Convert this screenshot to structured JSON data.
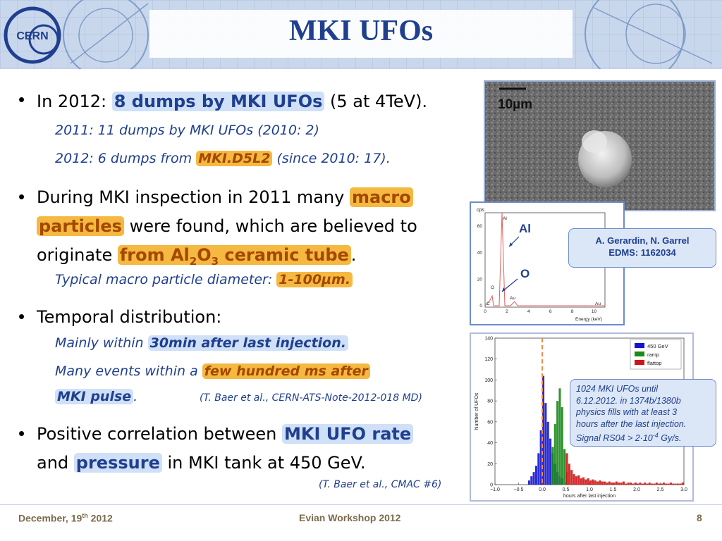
{
  "header": {
    "title": "MKI UFOs",
    "logo_text": "CERN"
  },
  "bullets": [
    {
      "line1_pre": "In 2012: ",
      "line1_hl": "8 dumps by MKI UFOs",
      "line1_post": " (5 at 4TeV).",
      "sub1": "2011: 11 dumps by MKI UFOs (2010: 2)",
      "sub2_pre": "2012: 6 dumps from ",
      "sub2_hl": "MKI.D5L2",
      "sub2_post": " (since 2010: 17)."
    },
    {
      "p1": "During MKI inspection in 2011 many ",
      "hl1": "macro",
      "hl2": "particles",
      "p2": " were found, which are believed to",
      "p3": "originate ",
      "hl3_a": "from Al",
      "hl3_sub1": "2",
      "hl3_b": "O",
      "hl3_sub2": "3",
      "hl3_c": " ceramic tube",
      "p4": ".",
      "sub_pre": "Typical macro particle diameter: ",
      "sub_hl": "1-100µm."
    },
    {
      "text": "Temporal distribution:",
      "sub1_pre": "Mainly within ",
      "sub1_hl": "30min after last injection.",
      "sub2_pre": "Many events within a ",
      "sub2_hl_a": "few hundred ms after",
      "sub2_hl_b": "MKI pulse",
      "sub2_post": ".",
      "ref": "(T. Baer et al., CERN-ATS-Note-2012-018 MD)"
    },
    {
      "pre": "Positive correlation between ",
      "hl1": "MKI UFO rate",
      "mid": "and ",
      "hl2": "pressure",
      "post": " in MKI tank at 450 GeV.",
      "ref": "(T. Baer et al., CMAC #6)"
    }
  ],
  "micrograph": {
    "scale_label": "10µm"
  },
  "callout": {
    "line1": "A. Gerardin, N. Garrel",
    "line2": "EDMS: 1162034"
  },
  "eds": {
    "y_unit": "cps",
    "y_ticks": [
      "0",
      "20",
      "40",
      "60"
    ],
    "x_ticks": [
      "0",
      "2",
      "4",
      "6",
      "8",
      "10"
    ],
    "x_label": "Energy (keV)",
    "peak_labels": [
      "Al",
      "O",
      "Au",
      "C",
      "Au"
    ],
    "label_al": "Al",
    "label_o": "O"
  },
  "chart_data": {
    "type": "bar",
    "ylabel": "Number of UFOs",
    "xlabel": "hours after last injection",
    "xlim": [
      -1.0,
      3.0
    ],
    "ylim": [
      0,
      140
    ],
    "x_ticks": [
      "−1.0",
      "−0.5",
      "0.0",
      "0.5",
      "1.0",
      "1.5",
      "2.0",
      "2.5",
      "3.0"
    ],
    "y_ticks": [
      "0",
      "20",
      "40",
      "60",
      "80",
      "100",
      "120",
      "140"
    ],
    "bin_width": 0.05,
    "series": [
      {
        "name": "450 GeV",
        "color": "#1515d0",
        "bins": [
          [
            -0.3,
            4
          ],
          [
            -0.25,
            8
          ],
          [
            -0.2,
            12
          ],
          [
            -0.15,
            18
          ],
          [
            -0.1,
            30
          ],
          [
            -0.05,
            52
          ],
          [
            0.0,
            104
          ],
          [
            0.05,
            78
          ],
          [
            0.1,
            60
          ],
          [
            0.15,
            44
          ],
          [
            0.2,
            30
          ],
          [
            0.25,
            20
          ],
          [
            0.3,
            12
          ],
          [
            0.35,
            8
          ],
          [
            0.4,
            6
          ]
        ]
      },
      {
        "name": "ramp",
        "color": "#1a8a1a",
        "bins": [
          [
            0.2,
            36
          ],
          [
            0.25,
            58
          ],
          [
            0.3,
            80
          ],
          [
            0.35,
            92
          ],
          [
            0.4,
            74
          ],
          [
            0.45,
            34
          ],
          [
            0.5,
            12
          ]
        ]
      },
      {
        "name": "flattop",
        "color": "#d01515",
        "bins": [
          [
            0.5,
            30
          ],
          [
            0.55,
            20
          ],
          [
            0.6,
            14
          ],
          [
            0.65,
            10
          ],
          [
            0.7,
            8
          ],
          [
            0.75,
            9
          ],
          [
            0.8,
            6
          ],
          [
            0.85,
            7
          ],
          [
            0.9,
            5
          ],
          [
            0.95,
            6
          ],
          [
            1.0,
            4
          ],
          [
            1.05,
            5
          ],
          [
            1.1,
            4
          ],
          [
            1.15,
            3
          ],
          [
            1.2,
            4
          ],
          [
            1.25,
            3
          ],
          [
            1.3,
            3
          ],
          [
            1.35,
            2
          ],
          [
            1.4,
            3
          ],
          [
            1.45,
            2
          ],
          [
            1.5,
            2
          ],
          [
            1.55,
            3
          ],
          [
            1.6,
            2
          ],
          [
            1.65,
            2
          ],
          [
            1.7,
            3
          ],
          [
            1.75,
            1
          ],
          [
            1.8,
            2
          ],
          [
            1.85,
            2
          ],
          [
            1.9,
            1
          ],
          [
            1.95,
            2
          ],
          [
            2.0,
            1
          ],
          [
            2.05,
            2
          ],
          [
            2.1,
            1
          ],
          [
            2.15,
            2
          ],
          [
            2.2,
            1
          ],
          [
            2.25,
            2
          ],
          [
            2.3,
            1
          ],
          [
            2.35,
            1
          ],
          [
            2.4,
            2
          ],
          [
            2.45,
            1
          ],
          [
            2.5,
            1
          ],
          [
            2.55,
            2
          ],
          [
            2.6,
            1
          ],
          [
            2.65,
            1
          ],
          [
            2.7,
            2
          ],
          [
            2.75,
            1
          ],
          [
            2.8,
            1
          ],
          [
            2.85,
            1
          ],
          [
            2.9,
            1
          ],
          [
            2.95,
            2
          ]
        ]
      }
    ],
    "marker_x": 0.0,
    "legend_placement": "top-right"
  },
  "note": {
    "l1": "1024 MKI UFOs until",
    "l2": "6.12.2012. in 1374b/1380b",
    "l3": "physics fills with at least 3",
    "l4": "hours after the last injection.",
    "l5": "Signal RS04 > 2·10",
    "l5_sup": "-4",
    "l5_post": " Gy/s."
  },
  "footer": {
    "date_pre": "December, 19",
    "date_sup": "th",
    "date_post": " 2012",
    "event": "Evian Workshop 2012",
    "page": "8"
  }
}
